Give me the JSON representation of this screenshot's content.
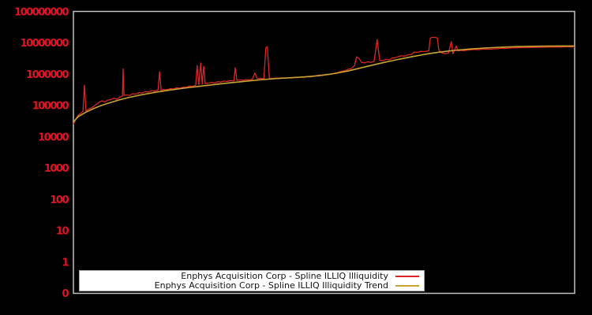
{
  "chart": {
    "background_color": "#000000",
    "plot_border_color": "#c0c0c0",
    "tick_label_color": "#e01424",
    "legend_background": "#ffffff"
  },
  "chart_data": {
    "type": "line",
    "title": "",
    "xlabel": "",
    "ylabel": "",
    "y_scale": "log",
    "ylim": [
      0,
      100000000
    ],
    "y_ticks": [
      "100000000",
      "10000000",
      "1000000",
      "100000",
      "10000",
      "1000",
      "100",
      "10",
      "1",
      "0"
    ],
    "x_tick_labels": [],
    "grid": false,
    "legend_position": "bottom-center",
    "series": [
      {
        "name": "Enphys Acquisition Corp - Spline ILLIQ Illiquidity",
        "color": "#dd2525",
        "points": [
          [
            0,
            25000
          ],
          [
            0.5,
            38000
          ],
          [
            0.9,
            48000
          ],
          [
            1.4,
            56000
          ],
          [
            1.9,
            65000
          ],
          [
            2.2,
            450000
          ],
          [
            2.5,
            68000
          ],
          [
            3.0,
            76000
          ],
          [
            3.5,
            83000
          ],
          [
            3.9,
            90000
          ],
          [
            4.4,
            105000
          ],
          [
            4.9,
            120000
          ],
          [
            5.4,
            135000
          ],
          [
            5.8,
            142000
          ],
          [
            6.3,
            130000
          ],
          [
            6.8,
            150000
          ],
          [
            7.4,
            155000
          ],
          [
            8.0,
            170000
          ],
          [
            8.7,
            160000
          ],
          [
            9.3,
            190000
          ],
          [
            9.8,
            200000
          ],
          [
            9.9,
            1500000
          ],
          [
            10.1,
            210000
          ],
          [
            10.6,
            220000
          ],
          [
            11.2,
            210000
          ],
          [
            11.8,
            240000
          ],
          [
            12.4,
            230000
          ],
          [
            13.1,
            260000
          ],
          [
            13.7,
            250000
          ],
          [
            14.3,
            280000
          ],
          [
            15.0,
            270000
          ],
          [
            15.6,
            300000
          ],
          [
            16.2,
            290000
          ],
          [
            16.9,
            320000
          ],
          [
            17.2,
            1200000
          ],
          [
            17.5,
            310000
          ],
          [
            18.1,
            330000
          ],
          [
            18.7,
            320000
          ],
          [
            19.4,
            350000
          ],
          [
            20.0,
            340000
          ],
          [
            20.6,
            370000
          ],
          [
            21.3,
            360000
          ],
          [
            21.9,
            390000
          ],
          [
            22.5,
            380000
          ],
          [
            23.1,
            420000
          ],
          [
            23.8,
            410000
          ],
          [
            24.4,
            450000
          ],
          [
            24.7,
            1900000
          ],
          [
            25.0,
            460000
          ],
          [
            25.4,
            2300000
          ],
          [
            25.7,
            480000
          ],
          [
            26.0,
            1800000
          ],
          [
            26.3,
            500000
          ],
          [
            26.9,
            520000
          ],
          [
            27.6,
            550000
          ],
          [
            28.2,
            530000
          ],
          [
            28.8,
            580000
          ],
          [
            29.4,
            560000
          ],
          [
            30.1,
            610000
          ],
          [
            30.7,
            590000
          ],
          [
            31.3,
            630000
          ],
          [
            32.0,
            610000
          ],
          [
            32.3,
            1600000
          ],
          [
            32.6,
            640000
          ],
          [
            33.2,
            660000
          ],
          [
            33.9,
            640000
          ],
          [
            34.5,
            680000
          ],
          [
            35.1,
            660000
          ],
          [
            35.7,
            700000
          ],
          [
            36.2,
            1100000
          ],
          [
            36.7,
            720000
          ],
          [
            37.3,
            740000
          ],
          [
            38.0,
            720000
          ],
          [
            38.4,
            7000000
          ],
          [
            38.7,
            7600000
          ],
          [
            39.1,
            750000
          ],
          [
            39.7,
            730000
          ],
          [
            40.3,
            760000
          ],
          [
            40.9,
            740000
          ],
          [
            41.6,
            770000
          ],
          [
            42.2,
            750000
          ],
          [
            42.8,
            780000
          ],
          [
            43.5,
            760000
          ],
          [
            44.1,
            800000
          ],
          [
            44.7,
            780000
          ],
          [
            45.4,
            820000
          ],
          [
            46.0,
            800000
          ],
          [
            46.6,
            840000
          ],
          [
            47.2,
            820000
          ],
          [
            47.9,
            860000
          ],
          [
            48.5,
            900000
          ],
          [
            49.1,
            950000
          ],
          [
            49.8,
            920000
          ],
          [
            50.4,
            1000000
          ],
          [
            51.0,
            970000
          ],
          [
            51.7,
            1050000
          ],
          [
            52.3,
            1100000
          ],
          [
            52.9,
            1150000
          ],
          [
            53.5,
            1250000
          ],
          [
            54.2,
            1300000
          ],
          [
            54.8,
            1450000
          ],
          [
            55.4,
            1500000
          ],
          [
            56.1,
            1900000
          ],
          [
            56.5,
            3600000
          ],
          [
            57.0,
            3200000
          ],
          [
            57.5,
            2400000
          ],
          [
            58.1,
            2300000
          ],
          [
            58.7,
            2500000
          ],
          [
            59.4,
            2400000
          ],
          [
            60.0,
            2600000
          ],
          [
            60.6,
            13000000
          ],
          [
            61.1,
            2800000
          ],
          [
            61.7,
            2700000
          ],
          [
            62.4,
            3000000
          ],
          [
            63.0,
            2900000
          ],
          [
            63.6,
            3300000
          ],
          [
            64.3,
            3400000
          ],
          [
            64.9,
            3700000
          ],
          [
            65.5,
            3900000
          ],
          [
            66.1,
            3800000
          ],
          [
            66.8,
            4200000
          ],
          [
            67.4,
            4300000
          ],
          [
            68.0,
            5100000
          ],
          [
            68.7,
            5000000
          ],
          [
            69.3,
            5400000
          ],
          [
            69.9,
            5300000
          ],
          [
            70.6,
            5500000
          ],
          [
            70.9,
            5600000
          ],
          [
            71.2,
            14000000
          ],
          [
            71.5,
            15000000
          ],
          [
            72.1,
            15000000
          ],
          [
            72.6,
            14500000
          ],
          [
            72.9,
            6000000
          ],
          [
            73.5,
            4800000
          ],
          [
            74.2,
            4600000
          ],
          [
            74.8,
            4700000
          ],
          [
            75.4,
            11000000
          ],
          [
            75.7,
            4500000
          ],
          [
            76.4,
            8000000
          ],
          [
            76.7,
            5600000
          ],
          [
            77.3,
            5800000
          ],
          [
            77.9,
            5700000
          ],
          [
            78.6,
            5900000
          ],
          [
            79.2,
            6000000
          ],
          [
            80.0,
            6200000
          ],
          [
            80.8,
            6100000
          ],
          [
            81.6,
            6300000
          ],
          [
            82.4,
            6400000
          ],
          [
            83.1,
            6300000
          ],
          [
            83.9,
            6500000
          ],
          [
            84.7,
            6600000
          ],
          [
            85.5,
            6800000
          ],
          [
            86.3,
            6700000
          ],
          [
            87.1,
            6900000
          ],
          [
            87.9,
            7000000
          ],
          [
            88.7,
            7000000
          ],
          [
            89.4,
            7100000
          ],
          [
            90.2,
            7100000
          ],
          [
            91.0,
            7200000
          ],
          [
            91.8,
            7200000
          ],
          [
            92.6,
            7300000
          ],
          [
            93.4,
            7300000
          ],
          [
            94.2,
            7300000
          ],
          [
            95.0,
            7400000
          ],
          [
            95.7,
            7400000
          ],
          [
            96.5,
            7400000
          ],
          [
            97.3,
            7400000
          ],
          [
            98.1,
            7500000
          ],
          [
            98.9,
            7500000
          ],
          [
            100,
            7500000
          ]
        ]
      },
      {
        "name": "Enphys Acquisition Corp - Spline ILLIQ Illiquidity Trend",
        "color": "#c9a42f",
        "points": [
          [
            0,
            30000
          ],
          [
            1,
            45000
          ],
          [
            2.5,
            62000
          ],
          [
            4,
            80000
          ],
          [
            5.5,
            100000
          ],
          [
            7,
            120000
          ],
          [
            9,
            150000
          ],
          [
            11,
            180000
          ],
          [
            13.5,
            220000
          ],
          [
            16,
            260000
          ],
          [
            19,
            310000
          ],
          [
            22,
            360000
          ],
          [
            25,
            410000
          ],
          [
            28,
            470000
          ],
          [
            31,
            530000
          ],
          [
            34,
            590000
          ],
          [
            37,
            660000
          ],
          [
            40,
            720000
          ],
          [
            43,
            770000
          ],
          [
            46,
            820000
          ],
          [
            49,
            900000
          ],
          [
            52,
            1050000
          ],
          [
            55,
            1300000
          ],
          [
            58,
            1700000
          ],
          [
            61,
            2200000
          ],
          [
            64,
            2800000
          ],
          [
            67,
            3500000
          ],
          [
            70,
            4300000
          ],
          [
            73,
            5100000
          ],
          [
            76,
            5800000
          ],
          [
            79,
            6400000
          ],
          [
            82,
            6900000
          ],
          [
            85,
            7300000
          ],
          [
            88,
            7600000
          ],
          [
            91,
            7800000
          ],
          [
            94,
            7900000
          ],
          [
            97,
            8000000
          ],
          [
            100,
            8000000
          ]
        ]
      }
    ]
  }
}
